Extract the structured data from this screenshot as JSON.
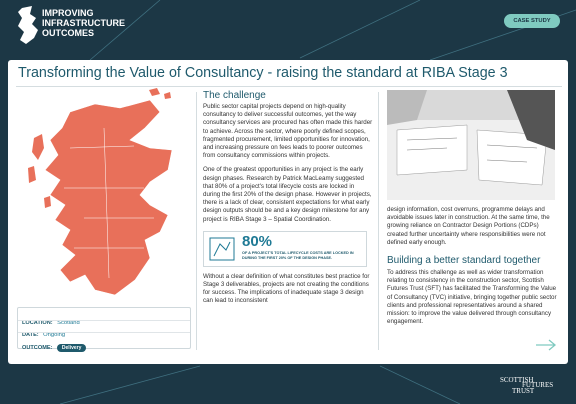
{
  "header": {
    "logo": [
      "IMPROVING",
      "INFRASTRUCTURE",
      "OUTCOMES"
    ],
    "badge": "CASE STUDY"
  },
  "title": "Transforming the Value of Consultancy - raising the standard at RIBA Stage 3",
  "details": {
    "location_label": "LOCATION:",
    "location": "Scotland",
    "date_label": "DATE:",
    "date": "Ongoing",
    "outcome_label": "OUTCOME:",
    "outcome": "Delivery"
  },
  "challenge": {
    "heading": "The challenge",
    "paragraphs": [
      "Public sector capital projects depend on high-quality consultancy to deliver successful outcomes, yet the way consultancy services are procured has often made this harder to achieve. Across the sector, where poorly defined scopes, fragmented procurement, limited opportunities for innovation, and increasing pressure on fees leads to poorer outcomes from consultancy commissions within projects.",
      "One of the greatest opportunities in any project is the early design phases. Research by Patrick MacLeamy suggested that 80% of a project's total lifecycle costs are locked in during the first 20% of the design phase. However in projects, there is a lack of clear, consistent expectations for what early design outputs should be and a key design milestone for any project is RIBA Stage 3 – Spatial Coordination."
    ],
    "stat": {
      "value": "80%",
      "caption": "OF A PROJECT'S TOTAL LIFECYCLE COSTS ARE LOCKED IN DURING THE FIRST 20% OF THE DESIGN PHASE."
    },
    "continued": "Without a clear definition of what constitutes best practice for Stage 3 deliverables, projects are not creating the conditions for success. The implications of inadequate stage 3 design can lead to inconsistent"
  },
  "right": {
    "continued": "design information, cost overruns, programme delays and avoidable issues later in construction. At the same time, the growing reliance on Contractor Design Portions (CDPs) created further uncertainty where responsibilities were not defined early enough.",
    "heading": "Building a better standard together",
    "paragraph": "To address this challenge as well as wider transformation relating to consistency in the construction sector, Scottish Futures Trust (SFT) has facilitated the Transforming the Value of Consultancy (TVC) initiative, bringing together public sector clients and professional representatives around a shared mission: to improve the value delivered through consultancy engagement."
  },
  "footer": {
    "logo": [
      "SCOTTISH",
      "FUTURES",
      "TRUST"
    ]
  }
}
